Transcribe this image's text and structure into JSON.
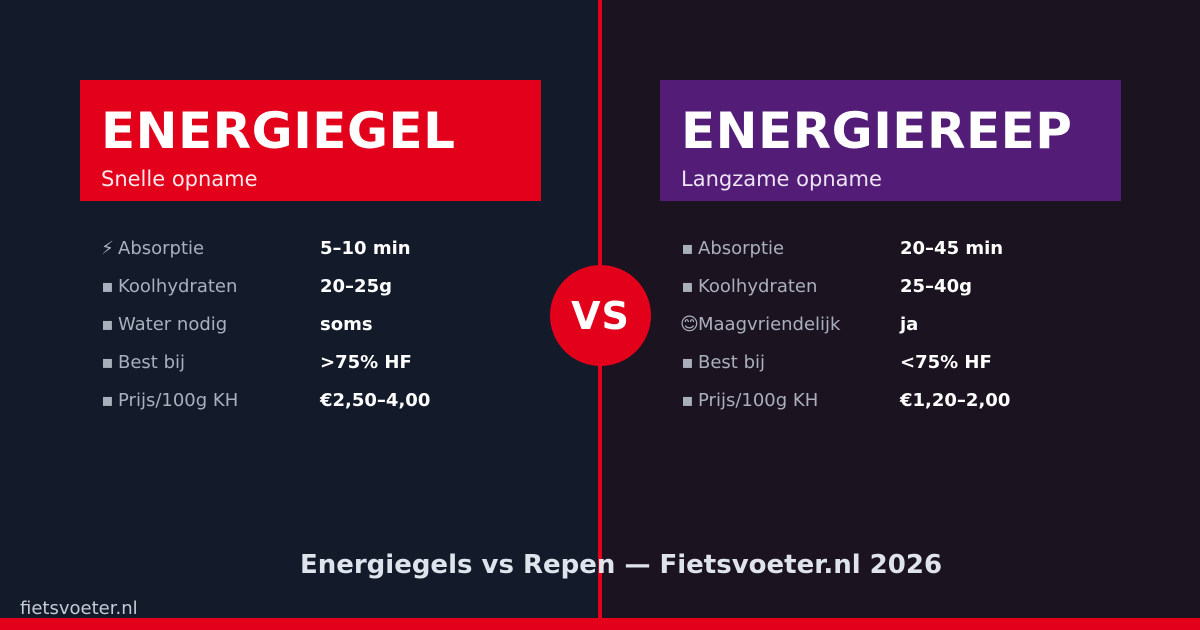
{
  "colors": {
    "accent_red": "#e2001a",
    "accent_purple": "#521c77",
    "left_bg": "#131b2b",
    "right_bg": "#1b131f"
  },
  "left": {
    "title": "ENERGIEGEL",
    "subtitle": "Snelle opname",
    "rows": [
      {
        "icon": "lightning-icon",
        "glyph": "⚡",
        "label": "Absorptie",
        "value": "5–10 min"
      },
      {
        "icon": "carbohydrate-icon",
        "glyph": "▪",
        "label": "Koolhydraten",
        "value": "20–25g"
      },
      {
        "icon": "water-drop-icon",
        "glyph": "▪",
        "label": "Water nodig",
        "value": "soms"
      },
      {
        "icon": "heart-icon",
        "glyph": "▪",
        "label": "Best bij",
        "value": ">75% HF"
      },
      {
        "icon": "money-icon",
        "glyph": "▪",
        "label": "Prijs/100g KH",
        "value": "€2,50–4,00"
      }
    ]
  },
  "right": {
    "title": "ENERGIEREEP",
    "subtitle": "Langzame opname",
    "rows": [
      {
        "icon": "clock-icon",
        "glyph": "▪",
        "label": "Absorptie",
        "value": "20–45 min"
      },
      {
        "icon": "carbohydrate-icon",
        "glyph": "▪",
        "label": "Koolhydraten",
        "value": "25–40g"
      },
      {
        "icon": "smiley-icon",
        "glyph": "😊",
        "label": "Maagvriendelijk",
        "value": "ja"
      },
      {
        "icon": "heart-icon",
        "glyph": "▪",
        "label": "Best bij",
        "value": "<75% HF"
      },
      {
        "icon": "money-icon",
        "glyph": "▪",
        "label": "Prijs/100g KH",
        "value": "€1,20–2,00"
      }
    ]
  },
  "vs_label": "VS",
  "footer": {
    "title": "Energiegels vs Repen — Fietsvoeter.nl 2026",
    "brand": "fietsvoeter.nl"
  }
}
